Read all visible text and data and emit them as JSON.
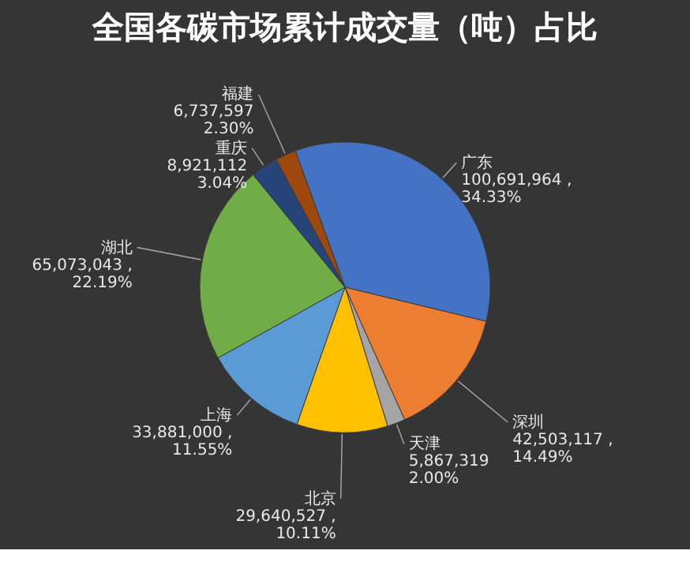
{
  "chart_data": {
    "type": "pie",
    "title": "全国各碳市场累计成交量（吨）占比",
    "categories": [
      "广东",
      "深圳",
      "天津",
      "北京",
      "上海",
      "湖北",
      "重庆",
      "福建"
    ],
    "values": [
      100691964,
      42503117,
      5867319,
      29640527,
      33881000,
      65073043,
      8921112,
      6737597
    ],
    "colors": [
      "#4472c4",
      "#ed7d31",
      "#a5a5a5",
      "#ffc000",
      "#5b9bd5",
      "#70ad47",
      "#264478",
      "#9e480e"
    ],
    "value_labels": [
      "100,691,964 ,\n34.33%",
      "42,503,117 ,\n14.49%",
      "5,867,319\n2.00%",
      "29,640,527 ,\n10.11%",
      "33,881,000 ,\n11.55%",
      "65,073,043 ,\n22.19%",
      "8,921,112\n3.04%",
      "6,737,597\n2.30%"
    ],
    "legend": false
  }
}
